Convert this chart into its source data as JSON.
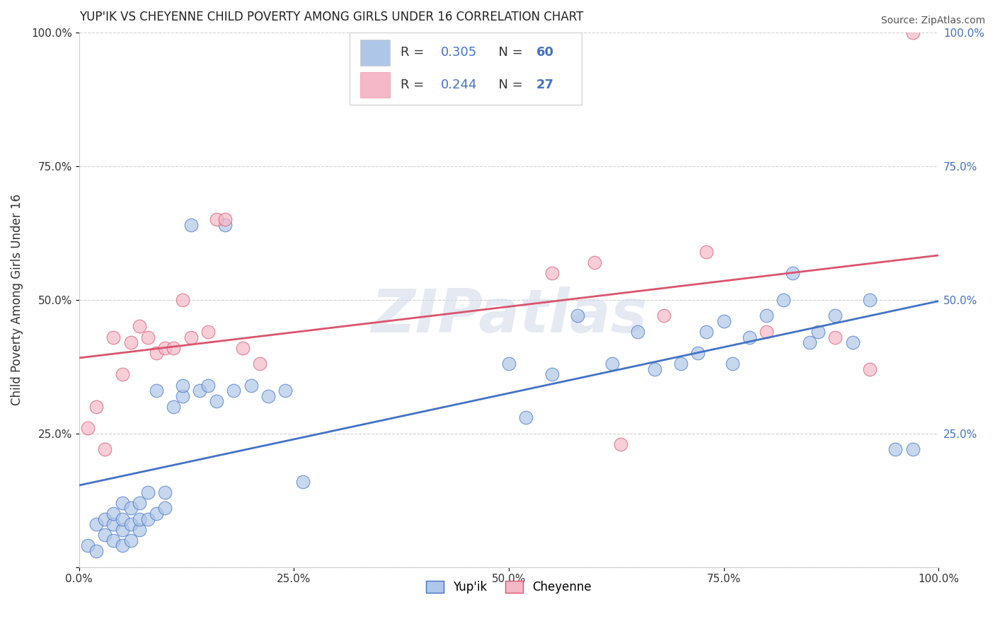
{
  "title": "YUP'IK VS CHEYENNE CHILD POVERTY AMONG GIRLS UNDER 16 CORRELATION CHART",
  "source": "Source: ZipAtlas.com",
  "ylabel": "Child Poverty Among Girls Under 16",
  "watermark": "ZIPatlas",
  "yupik_R": 0.305,
  "yupik_N": 60,
  "cheyenne_R": 0.244,
  "cheyenne_N": 27,
  "xlim": [
    0.0,
    1.0
  ],
  "ylim": [
    0.0,
    1.0
  ],
  "xticks": [
    0.0,
    0.25,
    0.5,
    0.75,
    1.0
  ],
  "yticks": [
    0.0,
    0.25,
    0.5,
    0.75,
    1.0
  ],
  "xticklabels": [
    "0.0%",
    "25.0%",
    "50.0%",
    "75.0%",
    "100.0%"
  ],
  "yticklabels": [
    "",
    "25.0%",
    "50.0%",
    "75.0%",
    "100.0%"
  ],
  "right_yticklabels": [
    "",
    "25.0%",
    "50.0%",
    "75.0%",
    "100.0%"
  ],
  "background_color": "#ffffff",
  "grid_color": "#d0d0d0",
  "yupik_color": "#aec6e8",
  "cheyenne_color": "#f4b8c8",
  "yupik_line_color": "#4472c4",
  "cheyenne_line_color": "#d9546e",
  "blue_text_color": "#4472c4",
  "yupik_scatter_x": [
    0.01,
    0.02,
    0.02,
    0.03,
    0.03,
    0.04,
    0.04,
    0.04,
    0.05,
    0.05,
    0.05,
    0.05,
    0.06,
    0.06,
    0.06,
    0.07,
    0.07,
    0.07,
    0.08,
    0.08,
    0.09,
    0.09,
    0.1,
    0.1,
    0.11,
    0.12,
    0.12,
    0.13,
    0.14,
    0.15,
    0.16,
    0.17,
    0.18,
    0.2,
    0.22,
    0.24,
    0.26,
    0.5,
    0.52,
    0.55,
    0.58,
    0.62,
    0.65,
    0.67,
    0.7,
    0.72,
    0.73,
    0.75,
    0.76,
    0.78,
    0.8,
    0.82,
    0.83,
    0.85,
    0.86,
    0.88,
    0.9,
    0.92,
    0.95,
    0.97
  ],
  "yupik_scatter_y": [
    0.04,
    0.03,
    0.08,
    0.06,
    0.09,
    0.05,
    0.08,
    0.1,
    0.04,
    0.07,
    0.09,
    0.12,
    0.05,
    0.08,
    0.11,
    0.07,
    0.09,
    0.12,
    0.09,
    0.14,
    0.1,
    0.33,
    0.11,
    0.14,
    0.3,
    0.32,
    0.34,
    0.64,
    0.33,
    0.34,
    0.31,
    0.64,
    0.33,
    0.34,
    0.32,
    0.33,
    0.16,
    0.38,
    0.28,
    0.36,
    0.47,
    0.38,
    0.44,
    0.37,
    0.38,
    0.4,
    0.44,
    0.46,
    0.38,
    0.43,
    0.47,
    0.5,
    0.55,
    0.42,
    0.44,
    0.47,
    0.42,
    0.5,
    0.22,
    0.22
  ],
  "cheyenne_scatter_x": [
    0.01,
    0.02,
    0.03,
    0.04,
    0.05,
    0.06,
    0.07,
    0.08,
    0.09,
    0.1,
    0.11,
    0.12,
    0.13,
    0.15,
    0.16,
    0.17,
    0.19,
    0.21,
    0.55,
    0.6,
    0.63,
    0.68,
    0.73,
    0.8,
    0.88,
    0.92,
    0.97
  ],
  "cheyenne_scatter_y": [
    0.26,
    0.3,
    0.22,
    0.43,
    0.36,
    0.42,
    0.45,
    0.43,
    0.4,
    0.41,
    0.41,
    0.5,
    0.43,
    0.44,
    0.65,
    0.65,
    0.41,
    0.38,
    0.55,
    0.57,
    0.23,
    0.47,
    0.59,
    0.44,
    0.43,
    0.37,
    1.0
  ]
}
